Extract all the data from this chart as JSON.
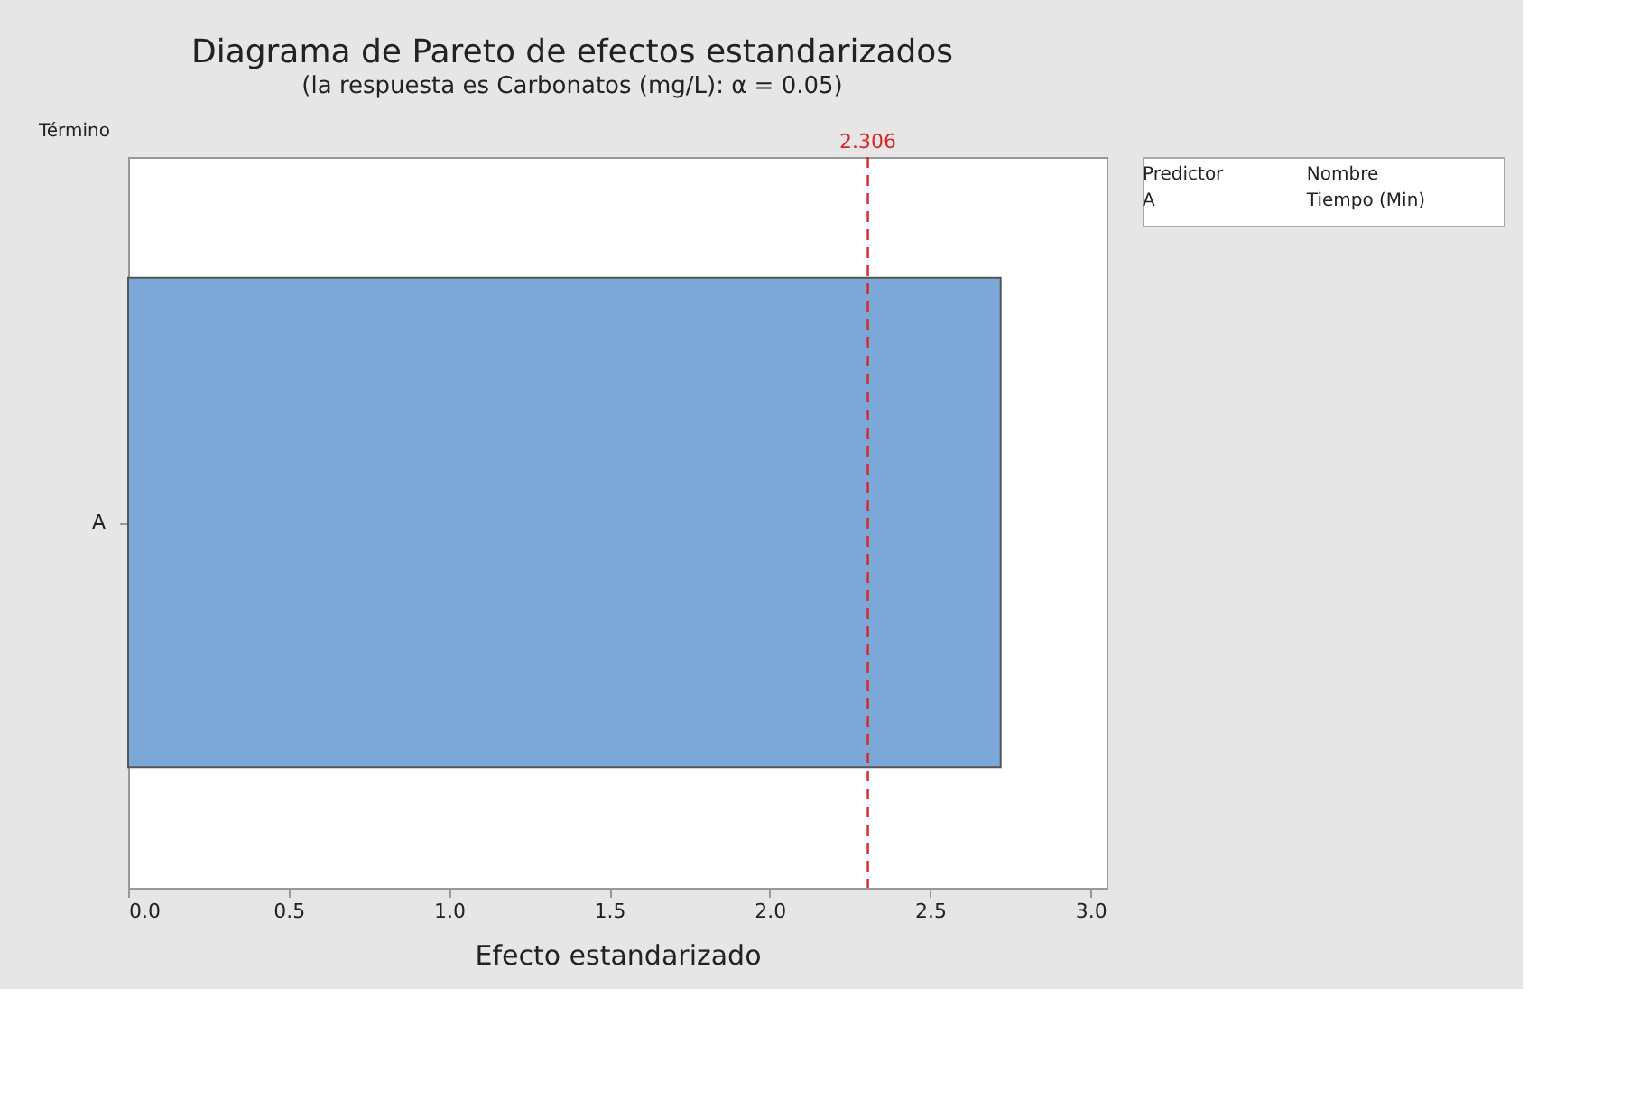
{
  "chart_data": {
    "type": "bar",
    "orientation": "horizontal",
    "title": "Diagrama de Pareto de efectos estandarizados",
    "subtitle": "(la respuesta es Carbonatos (mg/L): α = 0.05)",
    "xlabel": "Efecto estandarizado",
    "ylabel": "Término",
    "categories": [
      "A"
    ],
    "values": [
      2.72
    ],
    "color": "#7ba7d9",
    "xlim": [
      0,
      3.05
    ],
    "xticks": [
      {
        "value": 0,
        "label": "0.0"
      },
      0.5,
      {
        "value": 1,
        "label": "1.0"
      },
      1.5,
      {
        "value": 2,
        "label": "2.0"
      },
      2.5,
      {
        "value": 3,
        "label": "3.0"
      }
    ],
    "ref_lines": [
      {
        "axis": "x",
        "value": 2.306,
        "label": "2.306",
        "color": "#d62728",
        "line_style": "dashed"
      }
    ],
    "annotations": [
      "Predictor",
      "Nombre",
      "A",
      "Tiempo (Min)"
    ],
    "grid": false
  }
}
